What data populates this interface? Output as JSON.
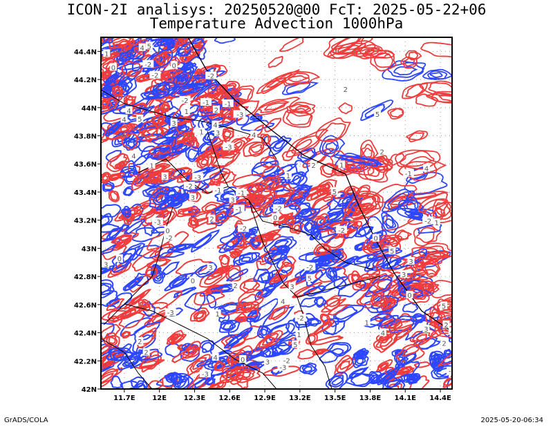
{
  "title": {
    "line1": "ICON-2I analisys: 20250520@00 FcT: 2025-05-22+06",
    "line2": "Temperature Advection 1000hPa"
  },
  "map": {
    "lat_labels": [
      "44.4N",
      "44.2N",
      "44N",
      "43.8N",
      "43.6N",
      "43.4N",
      "43.2N",
      "43N",
      "42.8N",
      "42.6N",
      "42.4N",
      "42.2N",
      "42N"
    ],
    "lon_labels": [
      "11.7E",
      "12E",
      "12.3E",
      "12.6E",
      "12.9E",
      "13.2E",
      "13.5E",
      "13.8E",
      "14.1E",
      "14.4E"
    ],
    "lat_range": [
      42.0,
      44.5
    ],
    "lon_range": [
      11.5,
      14.5
    ],
    "colors": {
      "warm_advection": "#f03c3c",
      "cold_advection": "#2d46ff",
      "boundaries": "#000000",
      "grid": "#9a9a9a"
    },
    "contour_labels": [
      "1",
      "-1",
      "2",
      "-2",
      "3",
      "4",
      "-3",
      "5",
      "0"
    ]
  },
  "footer": {
    "left": "GrADS/COLA",
    "right": "2025-05-20-06:34"
  }
}
